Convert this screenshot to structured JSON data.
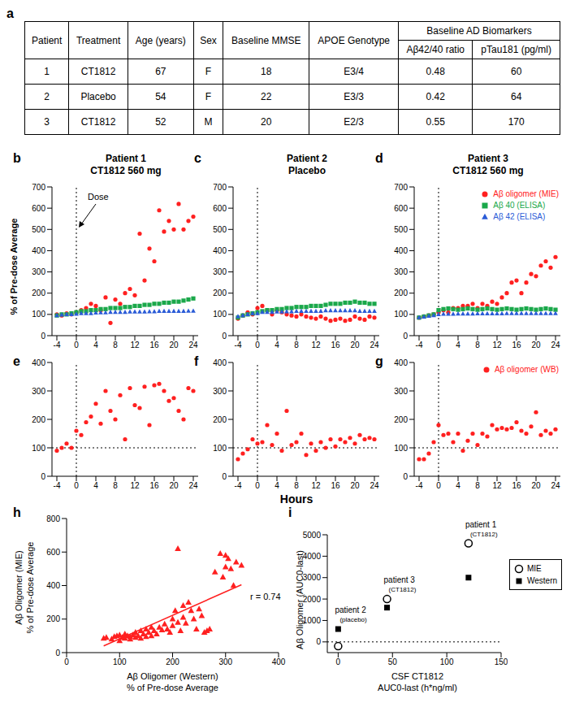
{
  "figure": {
    "ylabel": "% of Pre-dose Average",
    "xlabel": "Hours"
  },
  "table": {
    "panel": "a",
    "header": [
      "Patient",
      "Treatment",
      "Age (years)",
      "Sex",
      "Baseline MMSE",
      "APOE Genotype"
    ],
    "group_header": "Baseline AD Biomarkers",
    "subheader": [
      "Aβ42/40 ratio",
      "pTau181 (pg/ml)"
    ],
    "rows": [
      [
        "1",
        "CT1812",
        67,
        "F",
        18,
        "E3/4",
        0.48,
        60
      ],
      [
        "2",
        "Placebo",
        54,
        "F",
        22,
        "E3/3",
        0.42,
        64
      ],
      [
        "3",
        "CT1812",
        52,
        "M",
        20,
        "E2/3",
        0.55,
        170
      ]
    ]
  },
  "chart_data": [
    {
      "panel": "b",
      "type": "scatter",
      "title": "Patient 1",
      "subtitle": "CT1812 560 mg",
      "annotation": "Dose",
      "dose": 0,
      "x": [
        -4,
        -3,
        -2,
        -1,
        0,
        1,
        2,
        3,
        4,
        5,
        6,
        7,
        8,
        9,
        10,
        11,
        12,
        13,
        14,
        15,
        16,
        17,
        18,
        19,
        20,
        21,
        22,
        23,
        24
      ],
      "xlim": [
        -5,
        25
      ],
      "xticks": [
        -4,
        0,
        4,
        8,
        12,
        16,
        20,
        24
      ],
      "ylim": [
        0,
        700
      ],
      "yticks": [
        0,
        100,
        200,
        300,
        400,
        500,
        600,
        700
      ],
      "series": [
        {
          "name": "Aβ oligomer (MIE)",
          "color": "#ff2020",
          "marker": "circle",
          "values": [
            100,
            95,
            105,
            100,
            110,
            120,
            130,
            150,
            140,
            120,
            180,
            60,
            170,
            150,
            200,
            220,
            190,
            480,
            260,
            410,
            350,
            590,
            490,
            540,
            500,
            620,
            500,
            540,
            560
          ]
        },
        {
          "name": "Aβ 40 (ELISA)",
          "color": "#1aa84a",
          "marker": "square",
          "values": [
            95,
            100,
            100,
            105,
            110,
            115,
            115,
            120,
            120,
            125,
            125,
            130,
            130,
            130,
            135,
            135,
            140,
            140,
            145,
            145,
            150,
            150,
            155,
            155,
            160,
            160,
            165,
            170,
            175
          ]
        },
        {
          "name": "Aβ 42 (ELISA)",
          "color": "#2a5bd7",
          "marker": "triangle",
          "values": [
            95,
            98,
            100,
            100,
            102,
            105,
            105,
            105,
            107,
            108,
            108,
            110,
            110,
            110,
            110,
            112,
            112,
            112,
            112,
            113,
            113,
            115,
            115,
            115,
            115,
            115,
            115,
            116,
            116
          ]
        }
      ]
    },
    {
      "panel": "c",
      "type": "scatter",
      "title": "Patient 2",
      "subtitle": "Placebo",
      "dose": 0,
      "x": [
        -4,
        -3,
        -2,
        -1,
        0,
        1,
        2,
        3,
        4,
        5,
        6,
        7,
        8,
        9,
        10,
        11,
        12,
        13,
        14,
        15,
        16,
        17,
        18,
        19,
        20,
        21,
        22,
        23,
        24
      ],
      "xlim": [
        -5,
        25
      ],
      "xticks": [
        -4,
        0,
        4,
        8,
        12,
        16,
        20,
        24
      ],
      "ylim": [
        0,
        700
      ],
      "yticks": [
        0,
        100,
        200,
        300,
        400,
        500,
        600,
        700
      ],
      "series": [
        {
          "name": "Aβ oligomer (MIE)",
          "color": "#ff2020",
          "marker": "circle",
          "values": [
            80,
            95,
            110,
            100,
            130,
            140,
            120,
            100,
            120,
            110,
            100,
            95,
            90,
            100,
            90,
            85,
            80,
            90,
            80,
            70,
            75,
            80,
            70,
            75,
            90,
            80,
            75,
            90,
            85
          ]
        },
        {
          "name": "Aβ 40 (ELISA)",
          "color": "#1aa84a",
          "marker": "square",
          "values": [
            85,
            95,
            100,
            105,
            110,
            115,
            120,
            120,
            125,
            125,
            130,
            130,
            135,
            135,
            135,
            140,
            140,
            140,
            145,
            150,
            150,
            150,
            155,
            155,
            160,
            155,
            155,
            150,
            150
          ]
        },
        {
          "name": "Aβ 42 (ELISA)",
          "color": "#2a5bd7",
          "marker": "triangle",
          "values": [
            90,
            95,
            100,
            105,
            105,
            110,
            110,
            110,
            112,
            112,
            113,
            113,
            115,
            115,
            115,
            115,
            115,
            115,
            118,
            118,
            118,
            118,
            118,
            118,
            118,
            115,
            115,
            115,
            115
          ]
        }
      ]
    },
    {
      "panel": "d",
      "type": "scatter",
      "title": "Patient 3",
      "subtitle": "CT1812 560 mg",
      "dose": 0,
      "legend": "upper right",
      "x": [
        -4,
        -3,
        -2,
        -1,
        0,
        1,
        2,
        3,
        4,
        5,
        6,
        7,
        8,
        9,
        10,
        11,
        12,
        13,
        14,
        15,
        16,
        17,
        18,
        19,
        20,
        21,
        22,
        23,
        24
      ],
      "xlim": [
        -5,
        25
      ],
      "xticks": [
        -4,
        0,
        4,
        8,
        12,
        16,
        20,
        24
      ],
      "ylim": [
        0,
        700
      ],
      "yticks": [
        0,
        100,
        200,
        300,
        400,
        500,
        600,
        700
      ],
      "series": [
        {
          "name": "Aβ oligomer (MIE)",
          "color": "#ff2020",
          "marker": "circle",
          "values": [
            85,
            90,
            95,
            100,
            110,
            120,
            110,
            130,
            130,
            140,
            140,
            150,
            130,
            150,
            140,
            160,
            150,
            180,
            200,
            250,
            260,
            200,
            250,
            290,
            280,
            330,
            350,
            320,
            370
          ]
        },
        {
          "name": "Aβ 40 (ELISA)",
          "color": "#1aa84a",
          "marker": "square",
          "values": [
            85,
            90,
            95,
            100,
            120,
            125,
            128,
            125,
            122,
            125,
            128,
            125,
            122,
            125,
            128,
            125,
            122,
            125,
            128,
            125,
            122,
            125,
            128,
            125,
            122,
            125,
            128,
            125,
            122
          ]
        },
        {
          "name": "Aβ 42 (ELISA)",
          "color": "#2a5bd7",
          "marker": "triangle",
          "values": [
            85,
            88,
            92,
            95,
            100,
            102,
            102,
            102,
            103,
            103,
            103,
            103,
            104,
            104,
            104,
            104,
            104,
            104,
            105,
            105,
            105,
            105,
            105,
            105,
            105,
            105,
            105,
            105,
            105
          ]
        }
      ]
    },
    {
      "panel": "e",
      "type": "scatter",
      "dose": 0,
      "baseline": 100,
      "x": [
        -4,
        -3,
        -2,
        -1,
        0,
        1,
        2,
        3,
        4,
        5,
        6,
        7,
        8,
        9,
        10,
        11,
        12,
        13,
        14,
        15,
        16,
        17,
        18,
        19,
        20,
        21,
        22,
        23,
        24
      ],
      "xlim": [
        -5,
        25
      ],
      "xticks": [
        -4,
        0,
        4,
        8,
        12,
        16,
        20,
        24
      ],
      "ylim": [
        0,
        400
      ],
      "yticks": [
        0,
        100,
        200,
        300,
        400
      ],
      "series": [
        {
          "name": "Aβ oligomer (WB)",
          "color": "#ff2020",
          "marker": "circle",
          "values": [
            90,
            100,
            115,
            100,
            160,
            145,
            190,
            210,
            255,
            185,
            300,
            230,
            200,
            285,
            130,
            310,
            250,
            240,
            315,
            180,
            320,
            325,
            300,
            265,
            275,
            230,
            200,
            310,
            300
          ]
        }
      ]
    },
    {
      "panel": "f",
      "type": "scatter",
      "dose": 0,
      "baseline": 100,
      "x": [
        -4,
        -3,
        -2,
        -1,
        0,
        1,
        2,
        3,
        4,
        5,
        6,
        7,
        8,
        9,
        10,
        11,
        12,
        13,
        14,
        15,
        16,
        17,
        18,
        19,
        20,
        21,
        22,
        23,
        24
      ],
      "xlim": [
        -5,
        25
      ],
      "xticks": [
        -4,
        0,
        4,
        8,
        12,
        16,
        20,
        24
      ],
      "ylim": [
        0,
        400
      ],
      "yticks": [
        0,
        100,
        200,
        300,
        400
      ],
      "series": [
        {
          "name": "Aβ oligomer (WB)",
          "color": "#ff2020",
          "marker": "circle",
          "values": [
            60,
            80,
            95,
            130,
            115,
            120,
            180,
            110,
            150,
            90,
            230,
            110,
            120,
            150,
            75,
            115,
            90,
            120,
            100,
            130,
            105,
            130,
            120,
            135,
            115,
            145,
            130,
            135,
            130
          ]
        }
      ]
    },
    {
      "panel": "g",
      "type": "scatter",
      "dose": 0,
      "baseline": 100,
      "legend": "upper right",
      "x": [
        -4,
        -3,
        -2,
        -1,
        0,
        1,
        2,
        3,
        4,
        5,
        6,
        7,
        8,
        9,
        10,
        11,
        12,
        13,
        14,
        15,
        16,
        17,
        18,
        19,
        20,
        21,
        22,
        23,
        24
      ],
      "xlim": [
        -5,
        25
      ],
      "xticks": [
        -4,
        0,
        4,
        8,
        12,
        16,
        20,
        24
      ],
      "ylim": [
        0,
        400
      ],
      "yticks": [
        0,
        100,
        200,
        300,
        400
      ],
      "series": [
        {
          "name": "Aβ oligomer (WB)",
          "color": "#ff2020",
          "marker": "circle",
          "values": [
            60,
            60,
            80,
            120,
            180,
            145,
            150,
            120,
            150,
            90,
            125,
            150,
            110,
            150,
            140,
            180,
            165,
            170,
            165,
            170,
            190,
            160,
            150,
            175,
            225,
            145,
            160,
            150,
            165
          ]
        }
      ]
    },
    {
      "panel": "h",
      "type": "scatter",
      "color": "#ff2020",
      "marker": "triangle",
      "xlabel": [
        "Aβ Oligomer (Western)",
        "% of Pre-dose Average"
      ],
      "ylabel": [
        "Aβ Oligomer (MIE)",
        "% of Pre-dose Average"
      ],
      "xlim": [
        0,
        400
      ],
      "xticks": [
        0,
        100,
        200,
        300,
        400
      ],
      "ylim": [
        0,
        800
      ],
      "yticks": [
        0,
        200,
        400,
        600,
        800
      ],
      "x": [
        70,
        75,
        85,
        90,
        95,
        100,
        100,
        105,
        110,
        110,
        115,
        120,
        120,
        125,
        130,
        130,
        135,
        140,
        140,
        145,
        150,
        150,
        155,
        160,
        160,
        165,
        170,
        175,
        180,
        185,
        190,
        195,
        200,
        200,
        205,
        210,
        210,
        215,
        220,
        220,
        225,
        230,
        235,
        240,
        245,
        250,
        255,
        260,
        265,
        270,
        280,
        290,
        295,
        300,
        305,
        310,
        315,
        320,
        330,
        300
      ],
      "values": [
        85,
        90,
        80,
        95,
        100,
        70,
        105,
        90,
        85,
        110,
        100,
        80,
        95,
        105,
        90,
        120,
        100,
        85,
        130,
        110,
        95,
        140,
        120,
        100,
        150,
        130,
        110,
        150,
        135,
        170,
        140,
        120,
        200,
        160,
        250,
        180,
        620,
        130,
        280,
        210,
        175,
        300,
        250,
        200,
        140,
        260,
        220,
        120,
        130,
        140,
        480,
        590,
        450,
        510,
        560,
        500,
        400,
        540,
        520,
        580
      ],
      "fit": {
        "x": [
          70,
          330
        ],
        "y": [
          40,
          405
        ],
        "label": "r = 0.74"
      }
    },
    {
      "panel": "i",
      "type": "scatter",
      "legend": "right",
      "baseline": 0,
      "xlabel": [
        "CSF CT1812",
        "AUC0-last (h*ng/ml)"
      ],
      "ylabel": "Aβ Oligomer (AUC0-last)",
      "xlim": [
        -10,
        150
      ],
      "xticks": [
        0,
        50,
        100,
        150
      ],
      "ylim": [
        -500,
        5000
      ],
      "yticks": [
        0,
        1000,
        2000,
        3000,
        4000,
        5000
      ],
      "x": [
        0,
        45,
        120
      ],
      "point_labels": [
        "patient 2",
        "patient 3",
        "patient 1"
      ],
      "point_sublabels": [
        "(placebo)",
        "(CT1812)",
        "(CT1812)"
      ],
      "series": [
        {
          "name": "MIE",
          "color": "#000000",
          "marker": "open_circle",
          "values": [
            -200,
            2000,
            4600
          ]
        },
        {
          "name": "Western",
          "color": "#000000",
          "marker": "square",
          "values": [
            600,
            1600,
            3000
          ]
        }
      ]
    }
  ]
}
